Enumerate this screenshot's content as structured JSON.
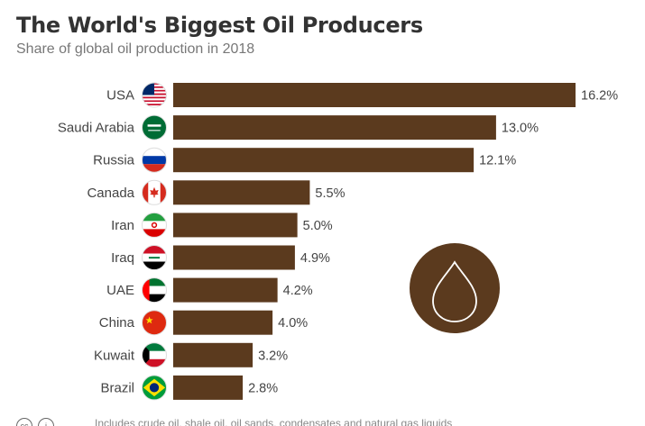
{
  "title": "The World's Biggest Oil Producers",
  "subtitle": "Share of global oil production in 2018",
  "footnote": "Includes crude oil, shale oil, oil sands, condensates and natural gas liquids",
  "colors": {
    "bar": "#5b3a1e",
    "label": "#444444",
    "value": "#444444"
  },
  "icons": {
    "decoration": "oil-drop-icon",
    "footer": [
      "cc-icon",
      "attribution-icon"
    ]
  },
  "chart_data": {
    "type": "bar",
    "orientation": "horizontal",
    "title": "The World's Biggest Oil Producers",
    "subtitle": "Share of global oil production in 2018",
    "categories": [
      "USA",
      "Saudi Arabia",
      "Russia",
      "Canada",
      "Iran",
      "Iraq",
      "UAE",
      "China",
      "Kuwait",
      "Brazil"
    ],
    "values": [
      16.2,
      13.0,
      12.1,
      5.5,
      5.0,
      4.9,
      4.2,
      4.0,
      3.2,
      2.8
    ],
    "value_labels": [
      "16.2%",
      "13.0%",
      "12.1%",
      "5.5%",
      "5.0%",
      "4.9%",
      "4.2%",
      "4.0%",
      "3.2%",
      "2.8%"
    ],
    "flags": [
      "usa-flag-icon",
      "saudi-arabia-flag-icon",
      "russia-flag-icon",
      "canada-flag-icon",
      "iran-flag-icon",
      "iraq-flag-icon",
      "uae-flag-icon",
      "china-flag-icon",
      "kuwait-flag-icon",
      "brazil-flag-icon"
    ],
    "xlim": [
      0,
      16.2
    ],
    "grid": false,
    "legend": "none"
  }
}
